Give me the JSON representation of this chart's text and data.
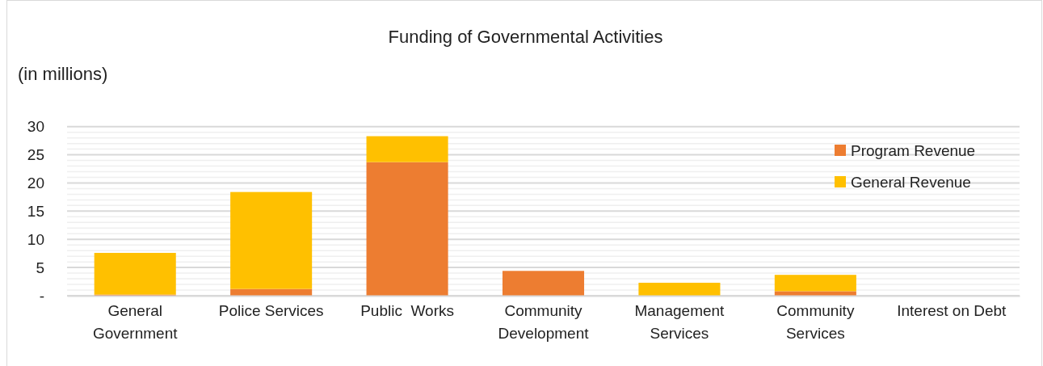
{
  "chart_data": {
    "type": "bar",
    "title": "Funding of Governmental Activities",
    "ylabel": "(in millions)",
    "categories": [
      "General Government",
      "Police Services",
      "Public  Works",
      "Community Development",
      "Management Services",
      "Community Services",
      "Interest on Debt"
    ],
    "stacked": true,
    "series": [
      {
        "name": "Program Revenue",
        "color": "#ed7d31",
        "values": [
          0.2,
          1.2,
          23.7,
          4.4,
          0,
          0.8,
          0
        ]
      },
      {
        "name": "General Revenue",
        "color": "#ffc000",
        "values": [
          7.4,
          17.2,
          4.6,
          0,
          2.3,
          2.9,
          0
        ]
      }
    ],
    "ylim": [
      0,
      30
    ],
    "yticks": [
      {
        "value": 0,
        "label": "-"
      },
      {
        "value": 1,
        "label": null
      },
      {
        "value": 2,
        "label": null
      },
      {
        "value": 3,
        "label": null
      },
      {
        "value": 4,
        "label": null
      },
      5,
      {
        "value": 6,
        "label": null
      },
      {
        "value": 7,
        "label": null
      },
      {
        "value": 8,
        "label": null
      },
      {
        "value": 9,
        "label": null
      },
      10,
      {
        "value": 11,
        "label": null
      },
      {
        "value": 12,
        "label": null
      },
      {
        "value": 13,
        "label": null
      },
      {
        "value": 14,
        "label": null
      },
      15,
      {
        "value": 16,
        "label": null
      },
      {
        "value": 17,
        "label": null
      },
      {
        "value": 18,
        "label": null
      },
      {
        "value": 19,
        "label": null
      },
      20,
      {
        "value": 21,
        "label": null
      },
      {
        "value": 22,
        "label": null
      },
      {
        "value": 23,
        "label": null
      },
      {
        "value": 24,
        "label": null
      },
      25,
      {
        "value": 26,
        "label": null
      },
      {
        "value": 27,
        "label": null
      },
      {
        "value": 28,
        "label": null
      },
      {
        "value": 29,
        "label": null
      },
      30
    ],
    "grid": "y",
    "legend": "top right"
  }
}
